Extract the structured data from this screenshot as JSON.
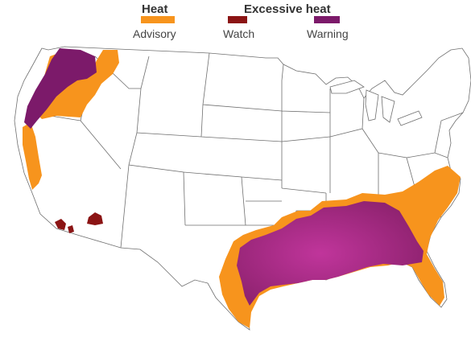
{
  "legend": {
    "heat_title": "Heat",
    "excessive_title": "Excessive heat",
    "advisory_label": "Advisory",
    "watch_label": "Watch",
    "warning_label": "Warning"
  },
  "colors": {
    "advisory": "#f7941d",
    "watch": "#8b1414",
    "warning": "#7c1a6a",
    "warning_light": "#b0308f",
    "land": "#ffffff",
    "border": "#6f6f6f"
  }
}
